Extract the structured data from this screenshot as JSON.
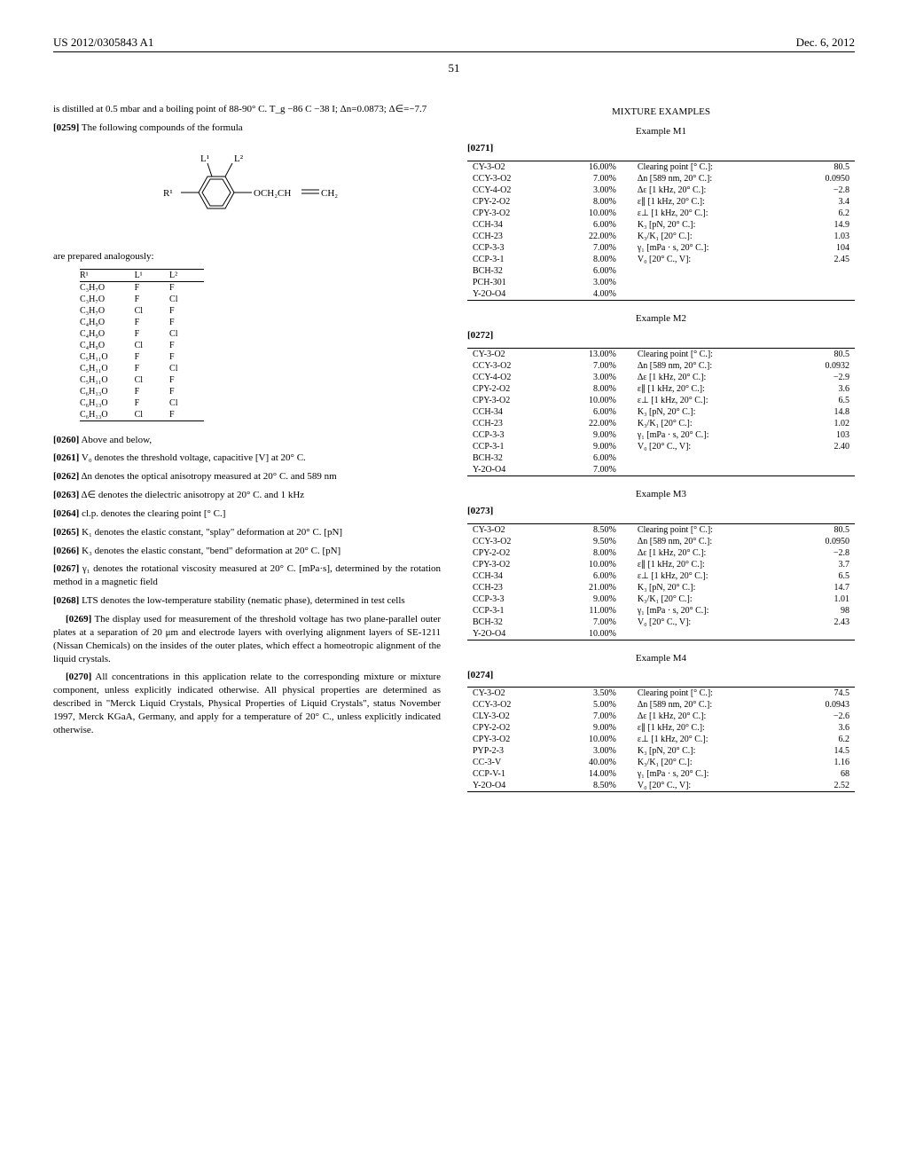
{
  "header": {
    "left": "US 2012/0305843 A1",
    "right": "Dec. 6, 2012"
  },
  "pageNumber": "51",
  "left": {
    "intro": "is distilled at 0.5 mbar and a boiling point of 88-90° C. T_g −86 C −38 I; Δn=0.0873; Δ∈=−7.7",
    "p0259": "[0259]",
    "p0259_text": "The following compounds of the formula",
    "formula_labels": {
      "L1": "L¹",
      "L2": "L²",
      "R1": "R¹",
      "O": "OCH₂CH",
      "CH2": "CH₂"
    },
    "analogously": "are prepared analogously:",
    "subTable": {
      "headers": [
        "R¹",
        "L¹",
        "L²"
      ],
      "rows": [
        [
          "C₃H₇O",
          "F",
          "F"
        ],
        [
          "C₃H₇O",
          "F",
          "Cl"
        ],
        [
          "C₃H₇O",
          "Cl",
          "F"
        ],
        [
          "C₄H₉O",
          "F",
          "F"
        ],
        [
          "C₄H₉O",
          "F",
          "Cl"
        ],
        [
          "C₄H₉O",
          "Cl",
          "F"
        ],
        [
          "C₅H₁₁O",
          "F",
          "F"
        ],
        [
          "C₅H₁₁O",
          "F",
          "Cl"
        ],
        [
          "C₅H₁₁O",
          "Cl",
          "F"
        ],
        [
          "C₆H₁₃O",
          "F",
          "F"
        ],
        [
          "C₆H₁₃O",
          "F",
          "Cl"
        ],
        [
          "C₆H₁₃O",
          "Cl",
          "F"
        ]
      ]
    },
    "defs": [
      {
        "num": "[0260]",
        "text": "Above and below,"
      },
      {
        "num": "[0261]",
        "text": "V₀ denotes the threshold voltage, capacitive [V] at 20° C."
      },
      {
        "num": "[0262]",
        "text": "Δn denotes the optical anisotropy measured at 20° C. and 589 nm"
      },
      {
        "num": "[0263]",
        "text": "Δ∈ denotes the dielectric anisotropy at 20° C. and 1 kHz"
      },
      {
        "num": "[0264]",
        "text": "cl.p. denotes the clearing point [° C.]"
      },
      {
        "num": "[0265]",
        "text": "K₁ denotes the elastic constant, \"splay\" deformation at 20° C. [pN]"
      },
      {
        "num": "[0266]",
        "text": "K₃ denotes the elastic constant, \"bend\" deformation at 20° C. [pN]"
      },
      {
        "num": "[0267]",
        "text": "γ₁ denotes the rotational viscosity measured at 20° C. [mPa·s], determined by the rotation method in a magnetic field"
      },
      {
        "num": "[0268]",
        "text": "LTS denotes the low-temperature stability (nematic phase), determined in test cells"
      }
    ],
    "p0269": {
      "num": "[0269]",
      "text": "The display used for measurement of the threshold voltage has two plane-parallel outer plates at a separation of 20 μm and electrode layers with overlying alignment layers of SE-1211 (Nissan Chemicals) on the insides of the outer plates, which effect a homeotropic alignment of the liquid crystals."
    },
    "p0270": {
      "num": "[0270]",
      "text": "All concentrations in this application relate to the corresponding mixture or mixture component, unless explicitly indicated otherwise. All physical properties are determined as described in \"Merck Liquid Crystals, Physical Properties of Liquid Crystals\", status November 1997, Merck KGaA, Germany, and apply for a temperature of 20° C., unless explicitly indicated otherwise."
    }
  },
  "right": {
    "mixHeading": "MIXTURE EXAMPLES",
    "examples": [
      {
        "title": "Example M1",
        "num": "[0271]",
        "comps": [
          [
            "CY-3-O2",
            "16.00%"
          ],
          [
            "CCY-3-O2",
            "7.00%"
          ],
          [
            "CCY-4-O2",
            "3.00%"
          ],
          [
            "CPY-2-O2",
            "8.00%"
          ],
          [
            "CPY-3-O2",
            "10.00%"
          ],
          [
            "CCH-34",
            "6.00%"
          ],
          [
            "CCH-23",
            "22.00%"
          ],
          [
            "CCP-3-3",
            "7.00%"
          ],
          [
            "CCP-3-1",
            "8.00%"
          ],
          [
            "BCH-32",
            "6.00%"
          ],
          [
            "PCH-301",
            "3.00%"
          ],
          [
            "Y-2O-O4",
            "4.00%"
          ]
        ],
        "props": [
          [
            "Clearing point [° C.]:",
            "80.5"
          ],
          [
            "Δn [589 nm, 20° C.]:",
            "0.0950"
          ],
          [
            "Δε [1 kHz, 20° C.]:",
            "−2.8"
          ],
          [
            "ε∥ [1 kHz, 20° C.]:",
            "3.4"
          ],
          [
            "ε⊥ [1 kHz, 20° C.]:",
            "6.2"
          ],
          [
            "K₃ [pN, 20° C.]:",
            "14.9"
          ],
          [
            "K₃/K₁ [20° C.]:",
            "1.03"
          ],
          [
            "γ₁ [mPa · s, 20° C.]:",
            "104"
          ],
          [
            "V₀ [20° C., V]:",
            "2.45"
          ]
        ]
      },
      {
        "title": "Example M2",
        "num": "[0272]",
        "comps": [
          [
            "CY-3-O2",
            "13.00%"
          ],
          [
            "CCY-3-O2",
            "7.00%"
          ],
          [
            "CCY-4-O2",
            "3.00%"
          ],
          [
            "CPY-2-O2",
            "8.00%"
          ],
          [
            "CPY-3-O2",
            "10.00%"
          ],
          [
            "CCH-34",
            "6.00%"
          ],
          [
            "CCH-23",
            "22.00%"
          ],
          [
            "CCP-3-3",
            "9.00%"
          ],
          [
            "CCP-3-1",
            "9.00%"
          ],
          [
            "BCH-32",
            "6.00%"
          ],
          [
            "Y-2O-O4",
            "7.00%"
          ]
        ],
        "props": [
          [
            "Clearing point [° C.]:",
            "80.5"
          ],
          [
            "Δn [589 nm, 20° C.]:",
            "0.0932"
          ],
          [
            "Δε [1 kHz, 20° C.]:",
            "−2.9"
          ],
          [
            "ε∥ [1 kHz, 20° C.]:",
            "3.6"
          ],
          [
            "ε⊥ [1 kHz, 20° C.]:",
            "6.5"
          ],
          [
            "K₃ [pN, 20° C.]:",
            "14.8"
          ],
          [
            "K₃/K₁ [20° C.]:",
            "1.02"
          ],
          [
            "γ₁ [mPa · s, 20° C.]:",
            "103"
          ],
          [
            "V₀ [20° C., V]:",
            "2.40"
          ]
        ]
      },
      {
        "title": "Example M3",
        "num": "[0273]",
        "comps": [
          [
            "CY-3-O2",
            "8.50%"
          ],
          [
            "CCY-3-O2",
            "9.50%"
          ],
          [
            "CPY-2-O2",
            "8.00%"
          ],
          [
            "CPY-3-O2",
            "10.00%"
          ],
          [
            "CCH-34",
            "6.00%"
          ],
          [
            "CCH-23",
            "21.00%"
          ],
          [
            "CCP-3-3",
            "9.00%"
          ],
          [
            "CCP-3-1",
            "11.00%"
          ],
          [
            "BCH-32",
            "7.00%"
          ],
          [
            "Y-2O-O4",
            "10.00%"
          ]
        ],
        "props": [
          [
            "Clearing point [° C.]:",
            "80.5"
          ],
          [
            "Δn [589 nm, 20° C.]:",
            "0.0950"
          ],
          [
            "Δε [1 kHz, 20° C.]:",
            "−2.8"
          ],
          [
            "ε∥ [1 kHz, 20° C.]:",
            "3.7"
          ],
          [
            "ε⊥ [1 kHz, 20° C.]:",
            "6.5"
          ],
          [
            "K₃ [pN, 20° C.]:",
            "14.7"
          ],
          [
            "K₃/K₁ [20° C.]:",
            "1.01"
          ],
          [
            "γ₁ [mPa · s, 20° C.]:",
            "98"
          ],
          [
            "V₀ [20° C., V]:",
            "2.43"
          ]
        ]
      },
      {
        "title": "Example M4",
        "num": "[0274]",
        "comps": [
          [
            "CY-3-O2",
            "3.50%"
          ],
          [
            "CCY-3-O2",
            "5.00%"
          ],
          [
            "CLY-3-O2",
            "7.00%"
          ],
          [
            "CPY-2-O2",
            "9.00%"
          ],
          [
            "CPY-3-O2",
            "10.00%"
          ],
          [
            "PYP-2-3",
            "3.00%"
          ],
          [
            "CC-3-V",
            "40.00%"
          ],
          [
            "CCP-V-1",
            "14.00%"
          ],
          [
            "Y-2O-O4",
            "8.50%"
          ]
        ],
        "props": [
          [
            "Clearing point [° C.]:",
            "74.5"
          ],
          [
            "Δn [589 nm, 20° C.]:",
            "0.0943"
          ],
          [
            "Δε [1 kHz, 20° C.]:",
            "−2.6"
          ],
          [
            "ε∥ [1 kHz, 20° C.]:",
            "3.6"
          ],
          [
            "ε⊥ [1 kHz, 20° C.]:",
            "6.2"
          ],
          [
            "K₃ [pN, 20° C.]:",
            "14.5"
          ],
          [
            "K₃/K₁ [20° C.]:",
            "1.16"
          ],
          [
            "γ₁ [mPa · s, 20° C.]:",
            "68"
          ],
          [
            "V₀ [20° C., V]:",
            "2.52"
          ]
        ]
      }
    ]
  }
}
